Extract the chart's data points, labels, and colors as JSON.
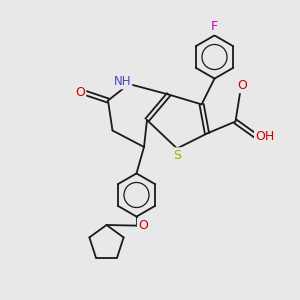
{
  "bg_color": "#e8e8e8",
  "bond_color": "#1a1a1a",
  "fig_width": 3.0,
  "fig_height": 3.0,
  "dpi": 100,
  "atom_labels": {
    "F": {
      "text": "F",
      "color": "#cc00cc",
      "fontsize": 8.5
    },
    "N": {
      "text": "NH",
      "color": "#4444cc",
      "fontsize": 8.5
    },
    "O1": {
      "text": "O",
      "color": "#cc0000",
      "fontsize": 8.5
    },
    "O2": {
      "text": "O",
      "color": "#cc0000",
      "fontsize": 8.5
    },
    "O3": {
      "text": "O",
      "color": "#cc0000",
      "fontsize": 8.5
    },
    "O4": {
      "text": "O",
      "color": "#cc0000",
      "fontsize": 8.5
    },
    "S": {
      "text": "S",
      "color": "#aaaa00",
      "fontsize": 8.5
    },
    "H": {
      "text": "H",
      "color": "#000000",
      "fontsize": 7.5
    }
  }
}
